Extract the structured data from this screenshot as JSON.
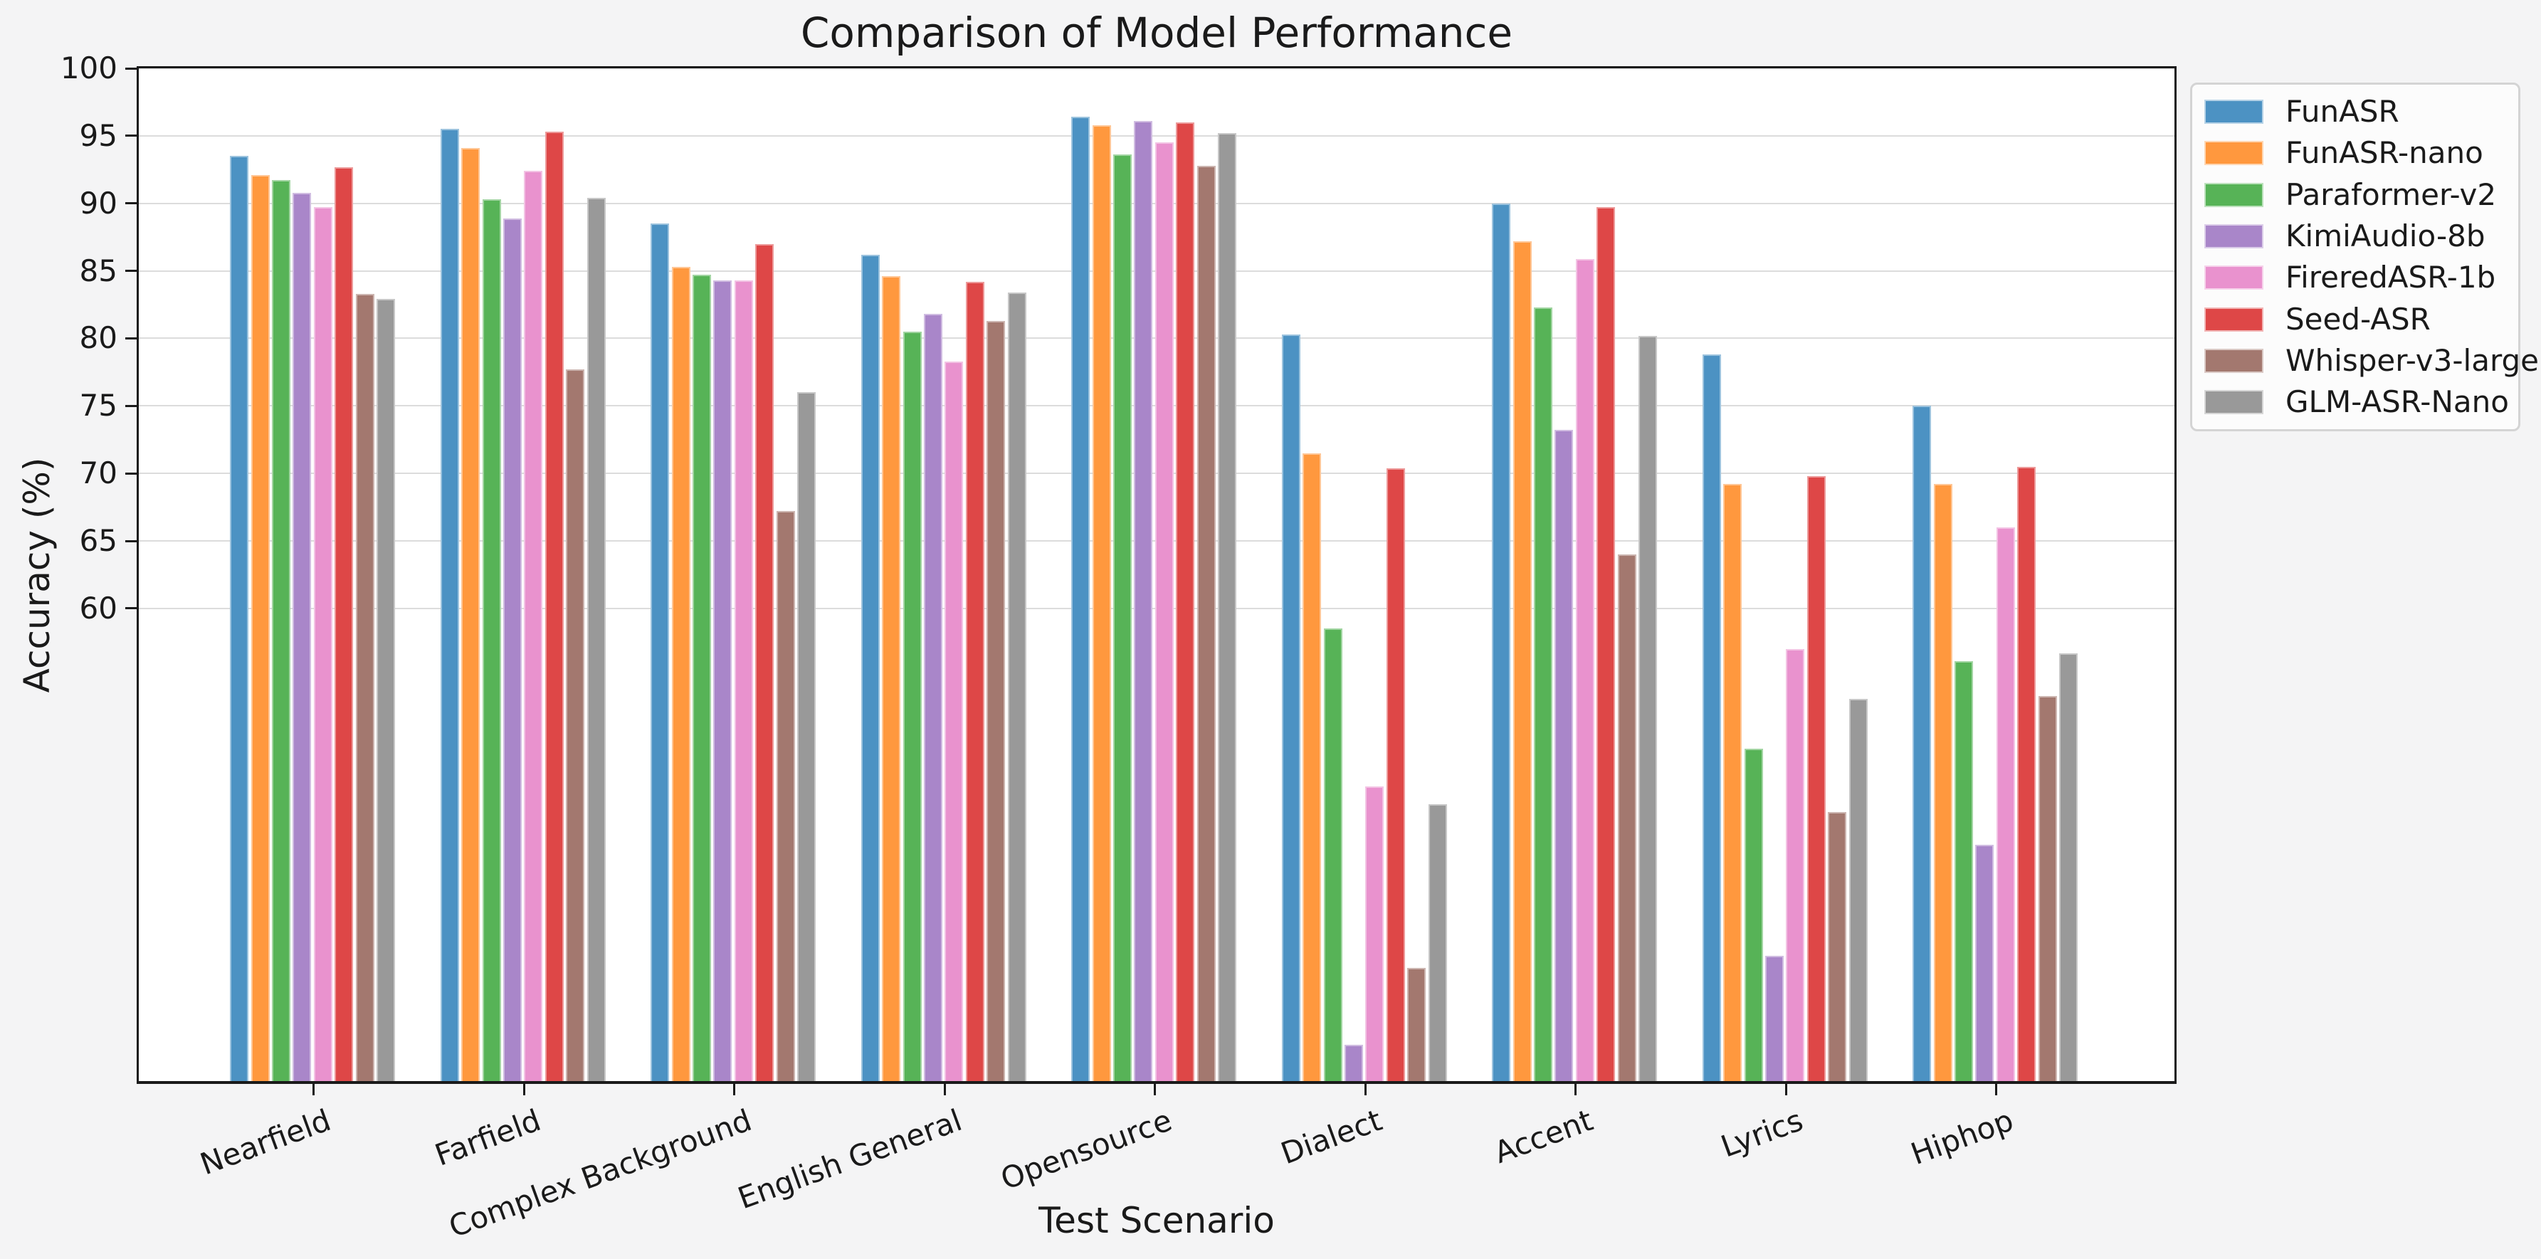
{
  "title": "Comparison of Model Performance",
  "chart_data": {
    "type": "bar",
    "title": "Comparison of Model Performance",
    "xlabel": "Test Scenario",
    "ylabel": "Accuracy (%)",
    "categories": [
      "Nearfield",
      "Farfield",
      "Complex Background",
      "English General",
      "Opensource",
      "Dialect",
      "Accent",
      "Lyrics",
      "Hiphop"
    ],
    "series": [
      {
        "name": "FunASR",
        "color": "#4C92C3",
        "values": [
          93.5,
          95.5,
          88.5,
          86.2,
          96.4,
          80.3,
          90.0,
          78.8,
          75.0
        ]
      },
      {
        "name": "FunASR-nano",
        "color": "#FF983E",
        "values": [
          92.1,
          94.1,
          85.3,
          84.6,
          95.8,
          71.5,
          87.2,
          69.2,
          69.2
        ]
      },
      {
        "name": "Paraformer-v2",
        "color": "#57B357",
        "values": [
          91.7,
          90.3,
          84.7,
          80.5,
          93.6,
          58.5,
          82.3,
          49.6,
          56.1
        ]
      },
      {
        "name": "KimiAudio-8b",
        "color": "#A986C9",
        "values": [
          90.8,
          88.9,
          84.3,
          81.8,
          96.1,
          27.7,
          73.2,
          34.3,
          42.5
        ]
      },
      {
        "name": "FireredASR-1b",
        "color": "#E992CE",
        "values": [
          89.7,
          92.4,
          84.3,
          78.3,
          94.5,
          46.8,
          85.9,
          57.0,
          66.0
        ]
      },
      {
        "name": "Seed-ASR",
        "color": "#DE4747",
        "values": [
          92.7,
          95.3,
          87.0,
          84.2,
          96.0,
          70.4,
          89.7,
          69.8,
          70.5
        ]
      },
      {
        "name": "Whisper-v3-large",
        "color": "#A3786F",
        "values": [
          83.3,
          77.7,
          67.2,
          81.3,
          92.8,
          33.4,
          64.0,
          44.9,
          53.5
        ]
      },
      {
        "name": "GLM-ASR-Nano",
        "color": "#999999",
        "values": [
          82.9,
          90.4,
          76.0,
          83.4,
          95.2,
          45.5,
          80.2,
          53.3,
          56.7
        ]
      }
    ],
    "ylim": [
      25,
      100
    ],
    "yticks": [
      60,
      65,
      70,
      75,
      80,
      85,
      90,
      95,
      100
    ],
    "grid": true,
    "legend_position": "outside-upper-right",
    "colors": {
      "figure_background": "#f4f4f5",
      "plot_background": "#ffffff",
      "gridline": "#dcdcdc",
      "spine": "#1a1a1a",
      "text": "#1a1a1a"
    }
  }
}
